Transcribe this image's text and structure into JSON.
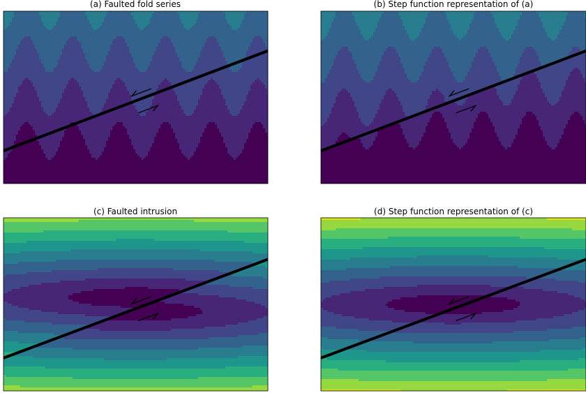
{
  "colors": {
    "palette": [
      "#440154",
      "#482677",
      "#404688",
      "#33638d",
      "#287d8e",
      "#1f968b",
      "#29af7f",
      "#55c667",
      "#95d840",
      "#dce319"
    ],
    "fault_line": "#000000",
    "frame": "#000000"
  },
  "chart_data": [
    {
      "type": "heatmap",
      "title": "(a) Faulted fold series",
      "colormap": "viridis",
      "field": "folded layers",
      "fold_wavelength": 0.175,
      "layer_spacing": 0.25,
      "fault": {
        "x": [
          0,
          1
        ],
        "y": [
          0.19,
          0.77
        ]
      },
      "fault_offset": 0.0,
      "levels": 10,
      "shear_arrows": true,
      "grid": false,
      "axes": "hidden"
    },
    {
      "type": "heatmap",
      "title": "(b) Step function representation of (a)",
      "colormap": "viridis",
      "field": "folded layers (step function)",
      "fold_wavelength": 0.175,
      "layer_spacing": 0.25,
      "fault": {
        "x": [
          0,
          1
        ],
        "y": [
          0.19,
          0.77
        ]
      },
      "fault_offset": 0.06,
      "levels": 10,
      "shear_arrows": true,
      "grid": false,
      "axes": "hidden"
    },
    {
      "type": "heatmap",
      "title": "(c) Faulted intrusion",
      "colormap": "viridis",
      "field": "elliptical intrusion",
      "intrusion_center": [
        0.5,
        0.5
      ],
      "fault": {
        "x": [
          0,
          1
        ],
        "y": [
          0.19,
          0.76
        ]
      },
      "fault_offset": 0.04,
      "levels": 10,
      "shear_arrows": true,
      "grid": false,
      "axes": "hidden"
    },
    {
      "type": "heatmap",
      "title": "(d) Step function representation of (c)",
      "colormap": "viridis",
      "field": "elliptical intrusion (step function)",
      "intrusion_center": [
        0.5,
        0.5
      ],
      "fault": {
        "x": [
          0,
          1
        ],
        "y": [
          0.19,
          0.76
        ]
      },
      "fault_offset": 0.0,
      "levels": 10,
      "shear_arrows": true,
      "grid": false,
      "axes": "hidden"
    }
  ]
}
